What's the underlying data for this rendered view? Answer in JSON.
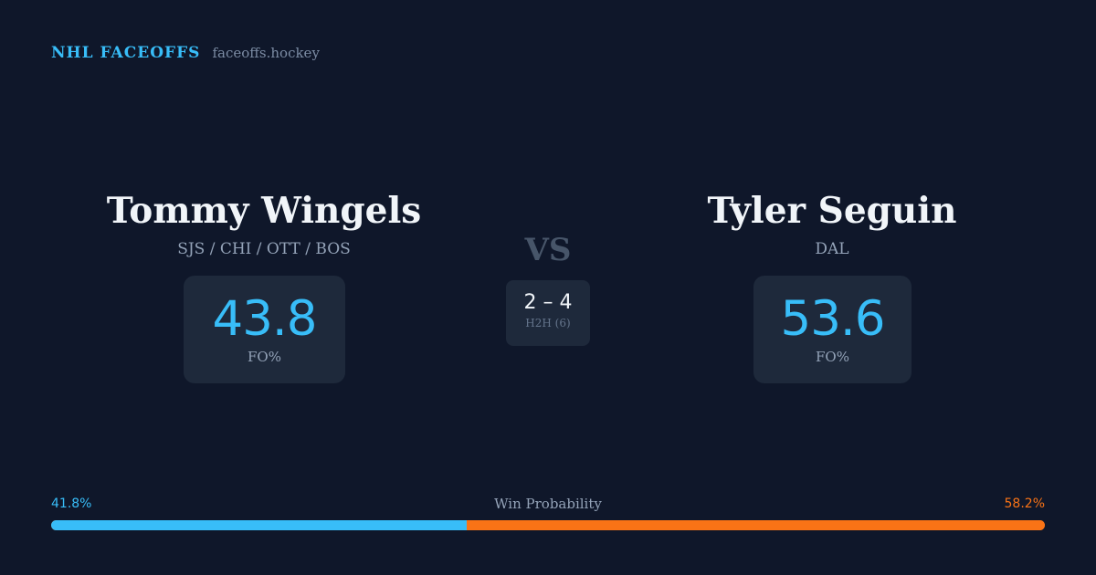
{
  "header": {
    "brand": "NHL FACEOFFS",
    "site": "faceoffs.hockey"
  },
  "left_player": {
    "name": "Tommy Wingels",
    "teams": "SJS / CHI / OTT / BOS",
    "fo_pct": "43.8",
    "fo_label": "FO%"
  },
  "right_player": {
    "name": "Tyler Seguin",
    "teams": "DAL",
    "fo_pct": "53.6",
    "fo_label": "FO%"
  },
  "matchup": {
    "vs_label": "VS",
    "h2h_score": "2 – 4",
    "h2h_label": "H2H (6)"
  },
  "win_probability": {
    "title": "Win Probability",
    "left_label": "41.8%",
    "right_label": "58.2%",
    "left_fraction": 0.418,
    "right_fraction": 0.582
  },
  "colors": {
    "background": "#0f172a",
    "card": "#1e293b",
    "left_accent": "#38bdf8",
    "right_accent": "#f97316"
  }
}
